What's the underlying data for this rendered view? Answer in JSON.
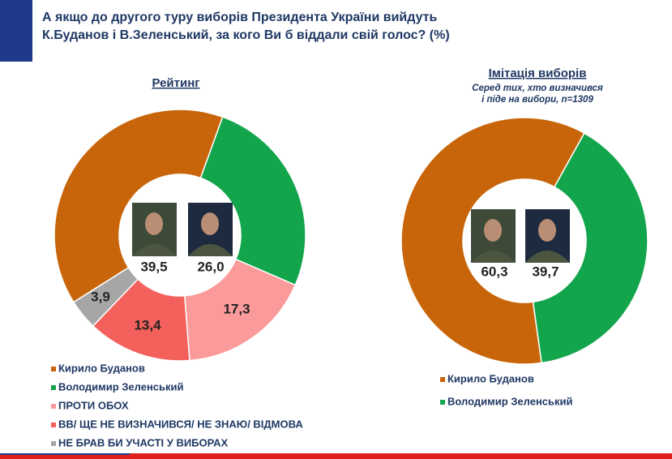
{
  "title": [
    "А якщо до другого туру виборів Президента України вийдуть",
    "К.Буданов і В.Зеленський, за кого Ви б віддали свій голос? (%)"
  ],
  "chart_data": [
    {
      "type": "donut",
      "title": "Рейтинг",
      "categories": [
        "Кирило Буданов",
        "Володимир Зеленський",
        "ПРОТИ ОБОХ",
        "ВВ/ ЩЕ НЕ ВИЗНАЧИВСЯ/ НЕ ЗНАЮ/ ВІДМОВА",
        "НЕ БРАВ БИ УЧАСТІ У ВИБОРАХ"
      ],
      "values": [
        39.5,
        26.0,
        17.3,
        13.4,
        3.9
      ],
      "value_labels": [
        "39,5",
        "26,0",
        "17,3",
        "13,4",
        "3,9"
      ],
      "colors": [
        "#c8650a",
        "#12a54c",
        "#fb9a9a",
        "#f4615c",
        "#a6a6a6"
      ]
    },
    {
      "type": "donut",
      "title": "Імітація виборів",
      "subtitle": [
        "Серед тих, хто визначився",
        "і піде на вибори, n=1309"
      ],
      "categories": [
        "Кирило Буданов",
        "Володимир Зеленський"
      ],
      "values": [
        60.3,
        39.7
      ],
      "value_labels": [
        "60,3",
        "39,7"
      ],
      "colors": [
        "#c8650a",
        "#12a54c"
      ]
    }
  ]
}
